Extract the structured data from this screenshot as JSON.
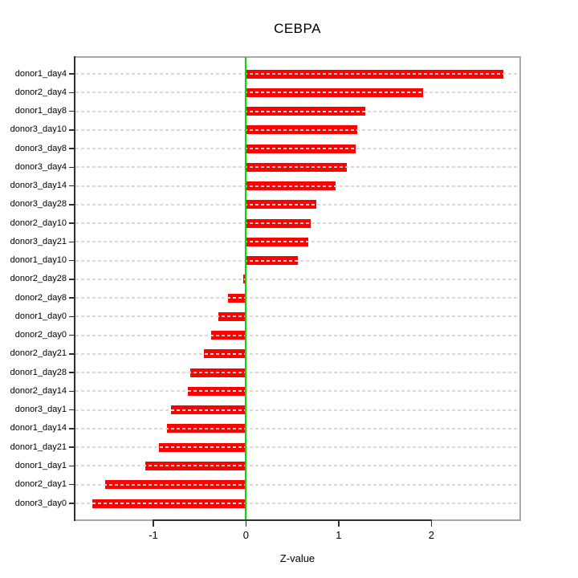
{
  "title": "CEBPA",
  "chart_data": {
    "type": "bar",
    "orientation": "horizontal",
    "title": "CEBPA",
    "xlabel": "Z-value",
    "ylabel": "",
    "categories": [
      "donor1_day4",
      "donor2_day4",
      "donor1_day8",
      "donor3_day10",
      "donor3_day8",
      "donor3_day4",
      "donor3_day14",
      "donor3_day28",
      "donor2_day10",
      "donor3_day21",
      "donor1_day10",
      "donor2_day28",
      "donor2_day8",
      "donor1_day0",
      "donor2_day0",
      "donor2_day21",
      "donor1_day28",
      "donor2_day14",
      "donor3_day1",
      "donor1_day14",
      "donor1_day21",
      "donor1_day1",
      "donor2_day1",
      "donor3_day0"
    ],
    "values": [
      2.78,
      1.91,
      1.29,
      1.2,
      1.18,
      1.09,
      0.97,
      0.76,
      0.7,
      0.67,
      0.56,
      -0.03,
      -0.19,
      -0.3,
      -0.38,
      -0.45,
      -0.6,
      -0.63,
      -0.81,
      -0.85,
      -0.94,
      -1.09,
      -1.52,
      -1.66
    ],
    "xlim": [
      -1.84,
      2.95
    ],
    "xticks": [
      -1,
      0,
      1,
      2
    ],
    "xtick_labels": [
      "-1",
      "0",
      "1",
      "2"
    ],
    "grid": "dashed horizontal line per category, drawn over bars",
    "legend": "none",
    "bar_color": "#ff0000",
    "zero_line_color": "#00dc00",
    "grid_color": "#d9d9d9",
    "frame_color": "#a8a8a8",
    "axis_color": "#303030"
  }
}
